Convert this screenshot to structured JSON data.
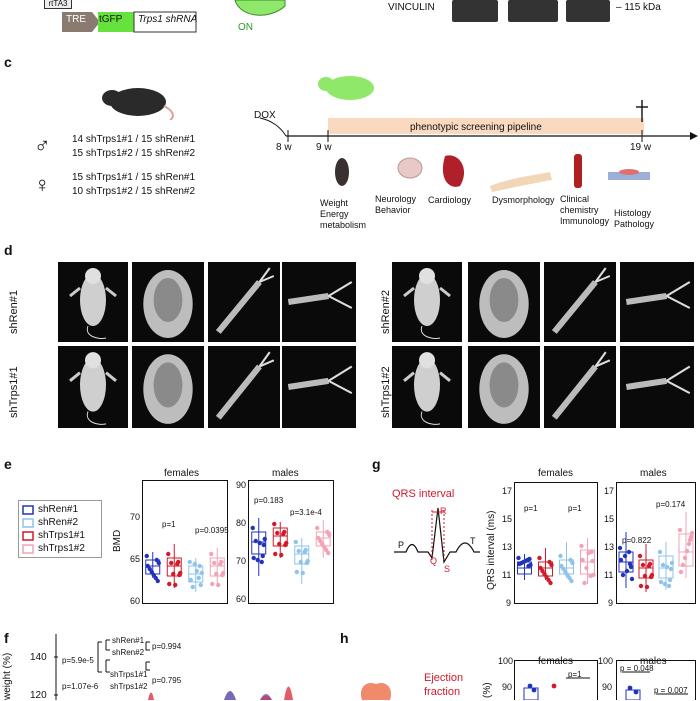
{
  "top": {
    "rtta3": "rtTA3",
    "tre": "TRE",
    "tgfp": "tGFP",
    "shrna": "Trps1 shRNA",
    "on": "ON",
    "vinculin": "VINCULIN",
    "kda": "– 115 kDa"
  },
  "c": {
    "letter": "c",
    "male_lines": [
      "14 shTrps1#1  /  15 shRen#1",
      "15 shTrps1#2  /  15 shRen#2"
    ],
    "female_lines": [
      "15 shTrps1#1  /  15 shRen#1",
      "10 shTrps1#2  /  15 shRen#2"
    ],
    "dox": "DOX",
    "t8": "8 w",
    "t9": "9 w",
    "t19": "19 w",
    "pipeline": "phenotypic screening pipeline",
    "modules": [
      {
        "label": "Weight\nEnergy\nmetabolism"
      },
      {
        "label": "Neurology\nBehavior"
      },
      {
        "label": "Cardiology"
      },
      {
        "label": "Dysmorphology"
      },
      {
        "label": "Clinical\nchemistry\nImmunology"
      },
      {
        "label": "Histology\nPathology"
      }
    ]
  },
  "d": {
    "letter": "d",
    "labels": [
      "shRen#1",
      "shTrps1#1",
      "shRen#2",
      "shTrps1#2"
    ]
  },
  "e": {
    "letter": "e",
    "legend": [
      "shRen#1",
      "shRen#2",
      "shTrps1#1",
      "shTrps1#2"
    ],
    "ylabel": "BMD",
    "females": {
      "title": "females",
      "p1": "p=1",
      "p2": "p=0.0395",
      "ticks": [
        "70",
        "65",
        "60"
      ]
    },
    "males": {
      "title": "males",
      "p1": "p=0.183",
      "p2": "p=3.1e-4",
      "ticks": [
        "90",
        "80",
        "70",
        "60"
      ]
    }
  },
  "g": {
    "letter": "g",
    "qrs": "QRS interval",
    "ecg_labels": {
      "p": "P",
      "q": "Q",
      "r": "R",
      "s": "S",
      "t": "T"
    },
    "ylabel": "QRS interval (ms)",
    "ticks": [
      "17",
      "15",
      "13",
      "11",
      "9"
    ],
    "females": {
      "title": "females",
      "p1": "p=1",
      "p2": "p=1"
    },
    "males": {
      "title": "males",
      "p1": "p=0.822",
      "p2": "p=0.174"
    }
  },
  "f": {
    "letter": "f",
    "ylabel": "weight (%)",
    "ticks": [
      "140",
      "120"
    ],
    "p_a": "p=5.9e-5",
    "p_b": "p=1.07e-6",
    "pair1a": "shRen#1",
    "pair1b": "shRen#2",
    "pair1p": "p=0.994",
    "pair2a": "shTrps1#1",
    "pair2b": "shTrps1#2",
    "pair2p": "p=0.795"
  },
  "h": {
    "letter": "h",
    "label1": "Ejection",
    "label2": "fraction",
    "ylabel": "(%)",
    "ticks": [
      "100",
      "90"
    ],
    "females": {
      "title": "females",
      "p": "p=1"
    },
    "males": {
      "title": "males",
      "p1": "p = 0.048",
      "p2": "p = 0.007"
    }
  },
  "colors": {
    "blue": "#2233bb",
    "lightblue": "#8fc3ea",
    "red": "#d11a2a",
    "pink": "#f2a3b5",
    "pipeline": "#f9d9bf"
  }
}
